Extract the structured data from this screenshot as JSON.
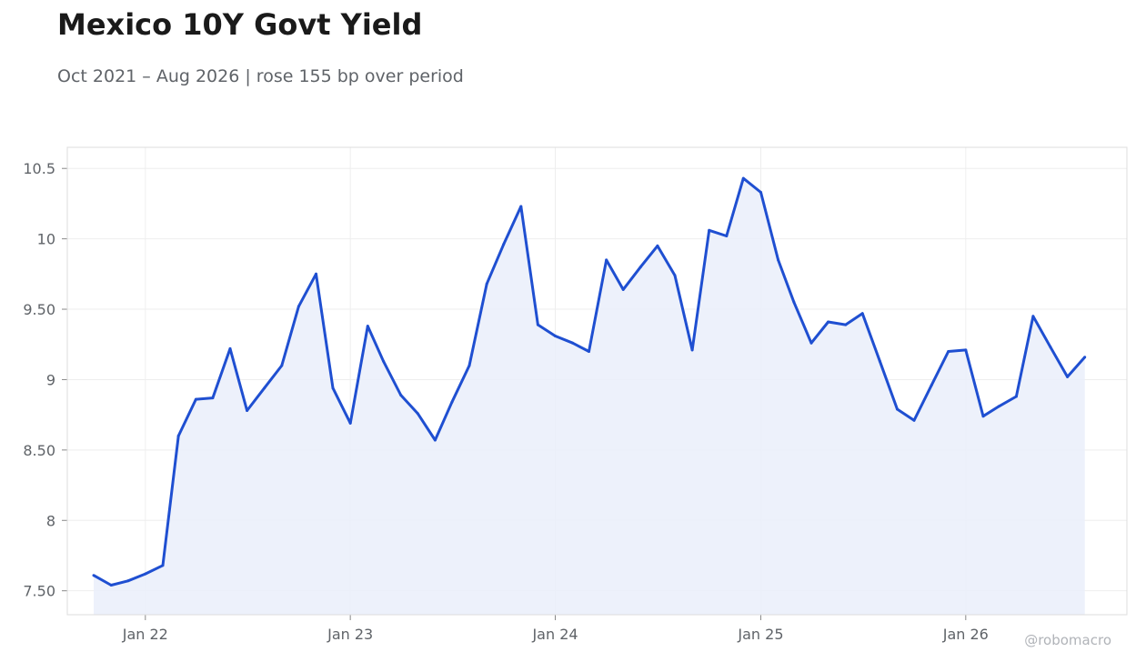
{
  "title": "Mexico 10Y Govt Yield",
  "subtitle": "Oct 2021 – Aug 2026 | rose 155 bp over period",
  "watermark": "@robomacro",
  "colors": {
    "line": "#1f4fd1",
    "fill": "#eaeffa",
    "grid": "#eeeeee",
    "frame": "#dddddd"
  },
  "chart_data": {
    "type": "area",
    "title": "Mexico 10Y Govt Yield",
    "subtitle": "Oct 2021 – Aug 2026 | rose 155 bp over period",
    "xlabel": "",
    "ylabel": "",
    "xlim": [
      "2021-08-15",
      "2026-10-15"
    ],
    "ylim": [
      7.33,
      10.65
    ],
    "grid": true,
    "legend": "none",
    "x_ticks": [
      {
        "date": "2022-01-01",
        "label": "Jan 22"
      },
      {
        "date": "2023-01-01",
        "label": "Jan 23"
      },
      {
        "date": "2024-01-01",
        "label": "Jan 24"
      },
      {
        "date": "2025-01-01",
        "label": "Jan 25"
      },
      {
        "date": "2026-01-01",
        "label": "Jan 26"
      }
    ],
    "y_ticks": [
      {
        "value": 7.5,
        "label": "7.50"
      },
      {
        "value": 8,
        "label": "8"
      },
      {
        "value": 8.5,
        "label": "8.50"
      },
      {
        "value": 9,
        "label": "9"
      },
      {
        "value": 9.5,
        "label": "9.50"
      },
      {
        "value": 10,
        "label": "10"
      },
      {
        "value": 10.5,
        "label": "10.5"
      }
    ],
    "series": [
      {
        "x": [
          "2021-10-01",
          "2021-11-01",
          "2021-12-01",
          "2022-01-01",
          "2022-02-01",
          "2022-03-01",
          "2022-04-01",
          "2022-05-01",
          "2022-06-01",
          "2022-07-01",
          "2022-08-01",
          "2022-09-01",
          "2022-10-01",
          "2022-11-01",
          "2022-12-01",
          "2023-01-01",
          "2023-02-01",
          "2023-03-01",
          "2023-04-01",
          "2023-05-01",
          "2023-06-01",
          "2023-07-01",
          "2023-08-01",
          "2023-09-01",
          "2023-10-01",
          "2023-11-01",
          "2023-12-01",
          "2024-01-01",
          "2024-02-01",
          "2024-03-01",
          "2024-04-01",
          "2024-05-01",
          "2024-06-01",
          "2024-07-01",
          "2024-08-01",
          "2024-09-01",
          "2024-10-01",
          "2024-11-01",
          "2024-12-01",
          "2025-01-01",
          "2025-02-01",
          "2025-03-01",
          "2025-04-01",
          "2025-05-01",
          "2025-06-01",
          "2025-07-01",
          "2025-08-01",
          "2025-09-01",
          "2025-10-01",
          "2025-11-01",
          "2025-12-01",
          "2026-01-01",
          "2026-02-01",
          "2026-03-01",
          "2026-04-01",
          "2026-05-01",
          "2026-06-01",
          "2026-07-01",
          "2026-08-01"
        ],
        "values": [
          7.61,
          7.54,
          7.57,
          7.62,
          7.68,
          8.6,
          8.86,
          8.87,
          9.22,
          8.78,
          8.94,
          9.1,
          9.52,
          9.75,
          8.94,
          8.69,
          9.38,
          9.13,
          8.89,
          8.76,
          8.57,
          8.84,
          9.1,
          9.68,
          9.96,
          10.23,
          9.39,
          9.31,
          9.26,
          9.2,
          9.85,
          9.64,
          9.8,
          9.95,
          9.74,
          9.21,
          10.06,
          10.02,
          10.43,
          10.33,
          9.85,
          9.55,
          9.26,
          9.41,
          9.39,
          9.47,
          9.13,
          8.79,
          8.71,
          8.96,
          9.2,
          9.21,
          8.74,
          8.81,
          8.88,
          9.45,
          9.23,
          9.02,
          9.16
        ]
      }
    ]
  }
}
